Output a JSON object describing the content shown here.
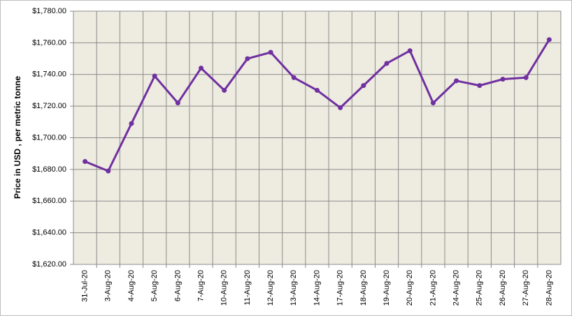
{
  "chart_data": {
    "type": "line",
    "y_label": "Price in USD , per metric tonne",
    "categories": [
      "31-Jul-20",
      "3-Aug-20",
      "4-Aug-20",
      "5-Aug-20",
      "6-Aug-20",
      "7-Aug-20",
      "10-Aug-20",
      "11-Aug-20",
      "12-Aug-20",
      "13-Aug-20",
      "14-Aug-20",
      "17-Aug-20",
      "18-Aug-20",
      "19-Aug-20",
      "20-Aug-20",
      "21-Aug-20",
      "24-Aug-20",
      "25-Aug-20",
      "26-Aug-20",
      "27-Aug-20",
      "28-Aug-20"
    ],
    "values": [
      1685,
      1679,
      1709,
      1739,
      1722,
      1744,
      1730,
      1750,
      1754,
      1738,
      1730,
      1719,
      1733,
      1747,
      1755,
      1722,
      1736,
      1733,
      1737,
      1738,
      1762
    ],
    "color": "#7030a0",
    "ylim": [
      1620,
      1780
    ],
    "yticks": [
      {
        "value": 1620,
        "label": "$1,620.00"
      },
      {
        "value": 1640,
        "label": "$1,640.00"
      },
      {
        "value": 1660,
        "label": "$1,660.00"
      },
      {
        "value": 1680,
        "label": "$1,680.00"
      },
      {
        "value": 1700,
        "label": "$1,700.00"
      },
      {
        "value": 1720,
        "label": "$1,720.00"
      },
      {
        "value": 1740,
        "label": "$1,740.00"
      },
      {
        "value": 1760,
        "label": "$1,760.00"
      },
      {
        "value": 1780,
        "label": "$1,780.00"
      }
    ],
    "grid": true
  }
}
